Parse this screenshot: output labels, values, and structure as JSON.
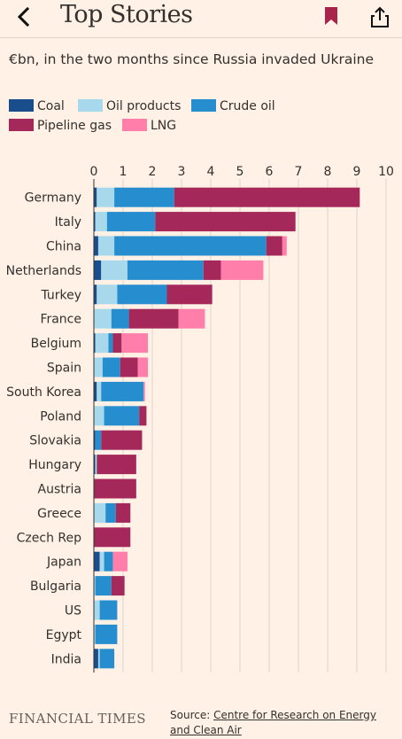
{
  "header": {
    "title": "Top Stories",
    "icons": [
      "back-icon",
      "bookmark-icon",
      "share-icon"
    ]
  },
  "colors": {
    "background": "#fff1e5",
    "bookmark": "#a8224a"
  },
  "legend": [
    {
      "label": "Coal",
      "color": "#1a4d8c"
    },
    {
      "label": "Oil products",
      "color": "#a7d8ec"
    },
    {
      "label": "Crude oil",
      "color": "#268ecf"
    },
    {
      "label": "Pipeline gas",
      "color": "#a4295a"
    },
    {
      "label": "LNG",
      "color": "#ff7faa"
    }
  ],
  "chart_data": {
    "type": "bar",
    "orientation": "horizontal",
    "stacked": true,
    "title": "€bn, in the two months since Russia invaded Ukraine",
    "xlim": [
      0,
      10
    ],
    "xticks": [
      "0",
      "1",
      "2",
      "3",
      "4",
      "5",
      "6",
      "7",
      "8",
      "9",
      "10"
    ],
    "categories": [
      "Germany",
      "Italy",
      "China",
      "Netherlands",
      "Turkey",
      "France",
      "Belgium",
      "Spain",
      "South Korea",
      "Poland",
      "Slovakia",
      "Hungary",
      "Austria",
      "Greece",
      "Czech Rep",
      "Japan",
      "Bulgaria",
      "US",
      "Egypt",
      "India"
    ],
    "series": [
      {
        "name": "Coal",
        "color": "#1a4d8c",
        "values": [
          0.1,
          0.05,
          0.15,
          0.25,
          0.1,
          0.0,
          0.05,
          0.0,
          0.1,
          0.0,
          0.05,
          0.05,
          0.0,
          0.0,
          0.0,
          0.2,
          0.0,
          0.0,
          0.0,
          0.15
        ]
      },
      {
        "name": "Oil products",
        "color": "#a7d8ec",
        "values": [
          0.6,
          0.4,
          0.55,
          0.9,
          0.7,
          0.6,
          0.45,
          0.3,
          0.15,
          0.35,
          0.0,
          0.05,
          0.0,
          0.4,
          0.0,
          0.15,
          0.05,
          0.2,
          0.05,
          0.05
        ]
      },
      {
        "name": "Crude oil",
        "color": "#268ecf",
        "values": [
          2.05,
          1.65,
          5.2,
          2.6,
          1.7,
          0.6,
          0.15,
          0.6,
          1.45,
          1.2,
          0.2,
          0.0,
          0.0,
          0.35,
          0.0,
          0.3,
          0.55,
          0.6,
          0.75,
          0.5
        ]
      },
      {
        "name": "Pipeline gas",
        "color": "#a4295a",
        "values": [
          6.35,
          4.8,
          0.55,
          0.6,
          1.55,
          1.7,
          0.3,
          0.6,
          0.0,
          0.25,
          1.4,
          1.35,
          1.45,
          0.5,
          1.25,
          0.0,
          0.45,
          0.0,
          0.0,
          0.0
        ]
      },
      {
        "name": "LNG",
        "color": "#ff7faa",
        "values": [
          0.0,
          0.0,
          0.15,
          1.45,
          0.0,
          0.9,
          0.9,
          0.35,
          0.05,
          0.0,
          0.0,
          0.0,
          0.0,
          0.0,
          0.0,
          0.5,
          0.0,
          0.0,
          0.0,
          0.0
        ]
      }
    ]
  },
  "footer": {
    "brand": "FINANCIAL TIMES",
    "source_prefix": "Source: ",
    "source_link": "Centre for Research on Energy and Clean Air"
  }
}
